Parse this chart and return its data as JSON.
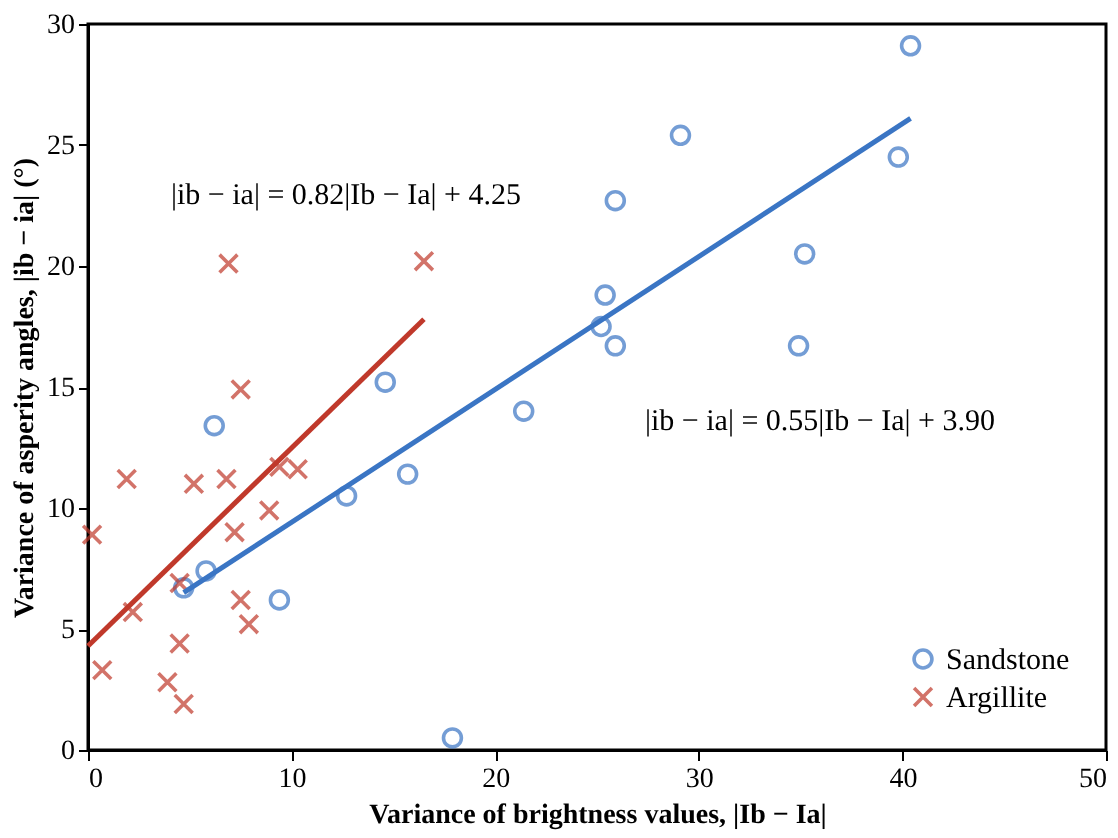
{
  "chart_data": {
    "type": "scatter",
    "xlabel": "Variance of brightness values, |Ib − Ia|",
    "ylabel": "Variance of asperity angles, |ib − ia| (°)",
    "xlim": [
      0,
      50
    ],
    "ylim": [
      0,
      30
    ],
    "xticks": [
      0,
      10,
      20,
      30,
      40,
      50
    ],
    "yticks": [
      0,
      5,
      10,
      15,
      20,
      25,
      30
    ],
    "grid": false,
    "legend": "bottom right",
    "series": [
      {
        "name": "Sandstone",
        "color": "#3a75c4",
        "marker": "circle",
        "x": [
          40.4,
          29.1,
          39.8,
          25.9,
          35.2,
          25.4,
          25.2,
          25.9,
          34.9,
          14.6,
          21.4,
          6.2,
          15.7,
          12.7,
          5.8,
          4.7,
          9.4,
          17.9
        ],
        "values": [
          29.1,
          25.4,
          24.5,
          22.7,
          20.5,
          18.8,
          17.5,
          16.7,
          16.7,
          15.2,
          14.0,
          13.4,
          11.4,
          10.5,
          7.4,
          6.7,
          6.2,
          0.5
        ]
      },
      {
        "name": "Argillite",
        "color": "#c0392b",
        "marker": "cross",
        "x": [
          6.9,
          16.5,
          7.5,
          1.9,
          5.2,
          6.8,
          9.4,
          10.3,
          8.9,
          0.2,
          7.2,
          4.5,
          2.2,
          7.5,
          7.9,
          4.5,
          0.7,
          3.9,
          4.7
        ],
        "values": [
          20.1,
          20.2,
          14.9,
          11.2,
          11.0,
          11.2,
          11.7,
          11.6,
          9.9,
          8.9,
          9.0,
          6.9,
          5.7,
          6.2,
          5.2,
          4.4,
          3.3,
          2.8,
          1.9
        ]
      },
      {
        "type": "line",
        "color": "#3a75c4",
        "x": [
          4.7,
          40.4
        ],
        "values": [
          6.5,
          26.1
        ]
      },
      {
        "type": "line",
        "color": "#c0392b",
        "x": [
          0,
          16.5
        ],
        "values": [
          4.3,
          17.8
        ]
      }
    ],
    "annotations": [
      "|ib − ia| = 0.82|Ib − Ia| + 4.25",
      "|ib − ia| = 0.55|Ib − Ia| + 3.90"
    ]
  }
}
